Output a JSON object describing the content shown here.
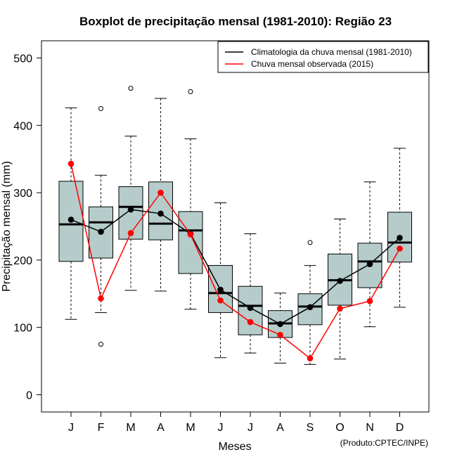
{
  "chart_data": {
    "type": "boxplot",
    "title": "Boxplot de precipitação mensal (1981-2010): Região 23",
    "xlabel": "Meses",
    "ylabel": "Precipitação mensal (mm)",
    "credit": "(Produto:CPTEC/INPE)",
    "categories": [
      "J",
      "F",
      "M",
      "A",
      "M",
      "J",
      "J",
      "A",
      "S",
      "O",
      "N",
      "D"
    ],
    "yticks": [
      0,
      100,
      200,
      300,
      400,
      500
    ],
    "ylim": [
      -25,
      525
    ],
    "legend_position": "top-right",
    "boxes": [
      {
        "whisker_low": 112,
        "q1": 198,
        "median": 253,
        "q3": 317,
        "whisker_high": 426,
        "outliers": []
      },
      {
        "whisker_low": 122,
        "q1": 203,
        "median": 256,
        "q3": 279,
        "whisker_high": 326,
        "outliers": [
          425,
          75
        ]
      },
      {
        "whisker_low": 155,
        "q1": 231,
        "median": 279,
        "q3": 309,
        "whisker_high": 384,
        "outliers": [
          455
        ]
      },
      {
        "whisker_low": 154,
        "q1": 230,
        "median": 254,
        "q3": 316,
        "whisker_high": 440,
        "outliers": []
      },
      {
        "whisker_low": 127,
        "q1": 180,
        "median": 244,
        "q3": 272,
        "whisker_high": 380,
        "outliers": [
          450
        ]
      },
      {
        "whisker_low": 55,
        "q1": 122,
        "median": 151,
        "q3": 192,
        "whisker_high": 285,
        "outliers": []
      },
      {
        "whisker_low": 62,
        "q1": 89,
        "median": 132,
        "q3": 161,
        "whisker_high": 239,
        "outliers": []
      },
      {
        "whisker_low": 47,
        "q1": 85,
        "median": 106,
        "q3": 125,
        "whisker_high": 151,
        "outliers": []
      },
      {
        "whisker_low": 45,
        "q1": 104,
        "median": 131,
        "q3": 150,
        "whisker_high": 192,
        "outliers": [
          226
        ]
      },
      {
        "whisker_low": 53,
        "q1": 133,
        "median": 170,
        "q3": 209,
        "whisker_high": 261,
        "outliers": []
      },
      {
        "whisker_low": 101,
        "q1": 159,
        "median": 198,
        "q3": 225,
        "whisker_high": 316,
        "outliers": []
      },
      {
        "whisker_low": 130,
        "q1": 197,
        "median": 226,
        "q3": 271,
        "whisker_high": 366,
        "outliers": []
      }
    ],
    "series": [
      {
        "name": "Climatologia da chuva mensal (1981-2010)",
        "color": "#000000",
        "values": [
          260,
          242,
          275,
          269,
          239,
          156,
          129,
          105,
          130,
          169,
          194,
          233
        ]
      },
      {
        "name": "Chuva mensal observada (2015)",
        "color": "#ff0000",
        "values": [
          343,
          143,
          240,
          300,
          238,
          140,
          108,
          89,
          54,
          128,
          139,
          217
        ]
      }
    ],
    "box_fill": "#b5cccb"
  }
}
